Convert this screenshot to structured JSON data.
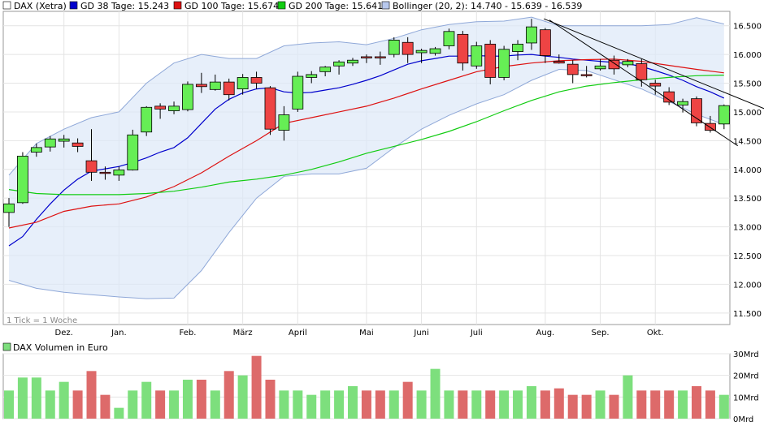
{
  "chart_data": [
    {
      "type": "candlestick",
      "interval_note": "1 Tick = 1 Woche",
      "legend": [
        {
          "label": "DAX (Xetra)",
          "color": "#ffffff",
          "stroke": "#000000"
        },
        {
          "label": "GD 38 Tage: 15.243",
          "color": "#0000cc",
          "stroke": "#000000"
        },
        {
          "label": "GD 100 Tage: 15.674",
          "color": "#dd1111",
          "stroke": "#000000"
        },
        {
          "label": "GD 200 Tage: 15.641",
          "color": "#11cc11",
          "stroke": "#000000"
        },
        {
          "label": "Bollinger (20, 2): 14.740 - 15.639 - 16.539",
          "color": "#b8c8ec",
          "stroke": "#000000"
        }
      ],
      "ylim": [
        11300,
        16750
      ],
      "y_ticks": [
        {
          "value": 11500,
          "label": "11.500"
        },
        {
          "value": 12000,
          "label": "12.000"
        },
        {
          "value": 12500,
          "label": "12.500"
        },
        {
          "value": 13000,
          "label": "13.000"
        },
        {
          "value": 13500,
          "label": "13.500"
        },
        {
          "value": 14000,
          "label": "14.000"
        },
        {
          "value": 14500,
          "label": "14.500"
        },
        {
          "value": 15000,
          "label": "15.000"
        },
        {
          "value": 15500,
          "label": "15.500"
        },
        {
          "value": 16000,
          "label": "16.000"
        },
        {
          "value": 16500,
          "label": "16.500"
        }
      ],
      "x_labels": [
        {
          "index": 4,
          "label": "Dez."
        },
        {
          "index": 8,
          "label": "Jan."
        },
        {
          "index": 13,
          "label": "Feb."
        },
        {
          "index": 17,
          "label": "März"
        },
        {
          "index": 21,
          "label": "April"
        },
        {
          "index": 26,
          "label": "Mai"
        },
        {
          "index": 30,
          "label": "Juni"
        },
        {
          "index": 34,
          "label": "Juli"
        },
        {
          "index": 39,
          "label": "Aug."
        },
        {
          "index": 43,
          "label": "Sep."
        },
        {
          "index": 47,
          "label": "Okt."
        }
      ],
      "candles": [
        {
          "o": 13250,
          "h": 13500,
          "l": 13000,
          "c": 13400
        },
        {
          "o": 13420,
          "h": 14300,
          "l": 13400,
          "c": 14230
        },
        {
          "o": 14300,
          "h": 14450,
          "l": 14220,
          "c": 14380
        },
        {
          "o": 14390,
          "h": 14580,
          "l": 14310,
          "c": 14530
        },
        {
          "o": 14490,
          "h": 14600,
          "l": 14380,
          "c": 14530
        },
        {
          "o": 14460,
          "h": 14540,
          "l": 14300,
          "c": 14400
        },
        {
          "o": 14150,
          "h": 14700,
          "l": 13800,
          "c": 13950
        },
        {
          "o": 13950,
          "h": 14050,
          "l": 13820,
          "c": 13940
        },
        {
          "o": 13900,
          "h": 14050,
          "l": 13800,
          "c": 13990
        },
        {
          "o": 13990,
          "h": 14690,
          "l": 13980,
          "c": 14600
        },
        {
          "o": 14650,
          "h": 15100,
          "l": 14580,
          "c": 15080
        },
        {
          "o": 15100,
          "h": 15150,
          "l": 14880,
          "c": 15050
        },
        {
          "o": 15020,
          "h": 15180,
          "l": 14960,
          "c": 15100
        },
        {
          "o": 15040,
          "h": 15530,
          "l": 15010,
          "c": 15480
        },
        {
          "o": 15480,
          "h": 15680,
          "l": 15330,
          "c": 15440
        },
        {
          "o": 15390,
          "h": 15650,
          "l": 15370,
          "c": 15520
        },
        {
          "o": 15520,
          "h": 15580,
          "l": 15200,
          "c": 15300
        },
        {
          "o": 15400,
          "h": 15660,
          "l": 15300,
          "c": 15600
        },
        {
          "o": 15600,
          "h": 15700,
          "l": 15400,
          "c": 15500
        },
        {
          "o": 15420,
          "h": 15450,
          "l": 14600,
          "c": 14700
        },
        {
          "o": 14680,
          "h": 15100,
          "l": 14500,
          "c": 14950
        },
        {
          "o": 15050,
          "h": 15700,
          "l": 15000,
          "c": 15620
        },
        {
          "o": 15600,
          "h": 15710,
          "l": 15500,
          "c": 15650
        },
        {
          "o": 15700,
          "h": 15800,
          "l": 15620,
          "c": 15780
        },
        {
          "o": 15800,
          "h": 15900,
          "l": 15650,
          "c": 15870
        },
        {
          "o": 15850,
          "h": 15940,
          "l": 15800,
          "c": 15900
        },
        {
          "o": 15960,
          "h": 16000,
          "l": 15850,
          "c": 15950
        },
        {
          "o": 15960,
          "h": 16050,
          "l": 15820,
          "c": 15940
        },
        {
          "o": 16000,
          "h": 16300,
          "l": 15950,
          "c": 16250
        },
        {
          "o": 16210,
          "h": 16300,
          "l": 15850,
          "c": 16000
        },
        {
          "o": 16030,
          "h": 16100,
          "l": 15850,
          "c": 16070
        },
        {
          "o": 16020,
          "h": 16130,
          "l": 15980,
          "c": 16100
        },
        {
          "o": 16150,
          "h": 16450,
          "l": 16090,
          "c": 16400
        },
        {
          "o": 16350,
          "h": 16410,
          "l": 15720,
          "c": 15850
        },
        {
          "o": 15800,
          "h": 16220,
          "l": 15750,
          "c": 16150
        },
        {
          "o": 16180,
          "h": 16250,
          "l": 15480,
          "c": 15600
        },
        {
          "o": 15600,
          "h": 16150,
          "l": 15550,
          "c": 16090
        },
        {
          "o": 16050,
          "h": 16250,
          "l": 15900,
          "c": 16180
        },
        {
          "o": 16200,
          "h": 16620,
          "l": 16080,
          "c": 16480
        },
        {
          "o": 16430,
          "h": 16460,
          "l": 15850,
          "c": 15980
        },
        {
          "o": 15880,
          "h": 16000,
          "l": 15840,
          "c": 15850
        },
        {
          "o": 15830,
          "h": 15900,
          "l": 15500,
          "c": 15650
        },
        {
          "o": 15650,
          "h": 15800,
          "l": 15600,
          "c": 15640
        },
        {
          "o": 15750,
          "h": 15920,
          "l": 15720,
          "c": 15800
        },
        {
          "o": 15900,
          "h": 15980,
          "l": 15650,
          "c": 15750
        },
        {
          "o": 15820,
          "h": 15920,
          "l": 15780,
          "c": 15880
        },
        {
          "o": 15840,
          "h": 15920,
          "l": 15440,
          "c": 15560
        },
        {
          "o": 15500,
          "h": 15560,
          "l": 15300,
          "c": 15450
        },
        {
          "o": 15350,
          "h": 15430,
          "l": 15120,
          "c": 15170
        },
        {
          "o": 15120,
          "h": 15230,
          "l": 14990,
          "c": 15180
        },
        {
          "o": 15230,
          "h": 15270,
          "l": 14750,
          "c": 14810
        },
        {
          "o": 14800,
          "h": 14930,
          "l": 14640,
          "c": 14680
        },
        {
          "o": 14790,
          "h": 15130,
          "l": 14700,
          "c": 15110
        }
      ],
      "series": [
        {
          "name": "GD 38 Tage",
          "color": "#0000cc",
          "x": [
            0,
            1,
            2,
            3,
            4,
            5,
            6,
            7,
            8,
            9,
            10,
            11,
            12,
            13,
            14,
            15,
            16,
            17,
            18,
            19,
            20,
            21,
            22,
            23,
            24,
            25,
            26,
            27,
            28,
            29,
            30,
            31,
            32,
            33,
            34,
            35,
            36,
            37,
            38,
            39,
            40,
            41,
            42,
            43,
            44,
            45,
            46,
            47,
            48,
            49,
            50,
            51,
            52
          ],
          "values": [
            12670,
            12830,
            13130,
            13400,
            13640,
            13830,
            13970,
            14010,
            14050,
            14120,
            14200,
            14300,
            14380,
            14550,
            14800,
            15050,
            15220,
            15330,
            15400,
            15420,
            15350,
            15330,
            15340,
            15380,
            15420,
            15480,
            15550,
            15630,
            15730,
            15830,
            15890,
            15930,
            15970,
            15970,
            15980,
            15970,
            15970,
            15990,
            16000,
            15970,
            15950,
            15920,
            15900,
            15880,
            15860,
            15840,
            15790,
            15720,
            15640,
            15550,
            15440,
            15350,
            15240
          ]
        },
        {
          "name": "GD 100 Tage",
          "color": "#dd1111",
          "x": [
            0,
            2,
            4,
            6,
            8,
            10,
            12,
            14,
            16,
            18,
            20,
            22,
            24,
            26,
            28,
            30,
            32,
            34,
            36,
            38,
            40,
            42,
            44,
            46,
            48,
            50,
            52
          ],
          "values": [
            12980,
            13080,
            13270,
            13360,
            13400,
            13520,
            13700,
            13940,
            14230,
            14500,
            14800,
            14900,
            15000,
            15100,
            15240,
            15400,
            15550,
            15700,
            15790,
            15850,
            15890,
            15910,
            15920,
            15880,
            15810,
            15740,
            15680
          ]
        },
        {
          "name": "GD 200 Tage",
          "color": "#11cc11",
          "x": [
            0,
            2,
            4,
            6,
            8,
            10,
            12,
            14,
            16,
            18,
            20,
            22,
            24,
            26,
            28,
            30,
            32,
            34,
            36,
            38,
            40,
            42,
            44,
            46,
            48,
            50,
            52
          ],
          "values": [
            13650,
            13580,
            13560,
            13560,
            13560,
            13580,
            13620,
            13690,
            13780,
            13830,
            13900,
            14000,
            14130,
            14280,
            14400,
            14520,
            14660,
            14830,
            15020,
            15200,
            15350,
            15450,
            15510,
            15560,
            15600,
            15630,
            15640
          ]
        },
        {
          "name": "Bollinger oben",
          "color": "#8fa8d8",
          "x": [
            0,
            2,
            4,
            6,
            8,
            10,
            12,
            14,
            16,
            18,
            20,
            22,
            24,
            26,
            28,
            30,
            32,
            34,
            36,
            38,
            40,
            42,
            44,
            46,
            48,
            50,
            52
          ],
          "values": [
            13900,
            14450,
            14700,
            14900,
            15000,
            15500,
            15850,
            16000,
            15930,
            15930,
            16150,
            16200,
            16220,
            16170,
            16280,
            16430,
            16520,
            16570,
            16580,
            16650,
            16500,
            16500,
            16500,
            16500,
            16520,
            16640,
            16530
          ]
        },
        {
          "name": "Bollinger unten",
          "color": "#8fa8d8",
          "x": [
            0,
            2,
            4,
            6,
            8,
            10,
            12,
            14,
            16,
            18,
            20,
            22,
            24,
            26,
            28,
            30,
            32,
            34,
            36,
            38,
            40,
            42,
            44,
            46,
            48,
            50,
            52
          ],
          "values": [
            12070,
            11930,
            11860,
            11820,
            11780,
            11750,
            11760,
            12240,
            12900,
            13500,
            13880,
            13920,
            13920,
            14020,
            14380,
            14700,
            14940,
            15140,
            15300,
            15550,
            15740,
            15720,
            15560,
            15400,
            15180,
            14960,
            14780
          ]
        }
      ],
      "trendlines": [
        {
          "color": "#000000",
          "x": [
            38.9,
            55.2
          ],
          "values": [
            16620,
            15030
          ]
        },
        {
          "color": "#000000",
          "x": [
            39.3,
            53.0
          ],
          "values": [
            16600,
            14410
          ]
        }
      ]
    },
    {
      "type": "bar",
      "title": "DAX Volumen in Euro",
      "ylim": [
        0,
        30
      ],
      "y_ticks": [
        {
          "value": 0,
          "label": "0Mrd"
        },
        {
          "value": 10,
          "label": "10Mrd"
        },
        {
          "value": 20,
          "label": "20Mrd"
        },
        {
          "value": 30,
          "label": "30Mrd"
        }
      ],
      "values": [
        13,
        19,
        19,
        13,
        17,
        13,
        22,
        11,
        5,
        13,
        17,
        13,
        13,
        18,
        18,
        13,
        22,
        20,
        29,
        18,
        13,
        13,
        11,
        13,
        13,
        15,
        13,
        13,
        13,
        17,
        13,
        23,
        13,
        13,
        13,
        13,
        13,
        13,
        15,
        13,
        14,
        11,
        11,
        13,
        11,
        20,
        13,
        13,
        13,
        13,
        15,
        13,
        11
      ],
      "colors_by_candle": true
    }
  ]
}
